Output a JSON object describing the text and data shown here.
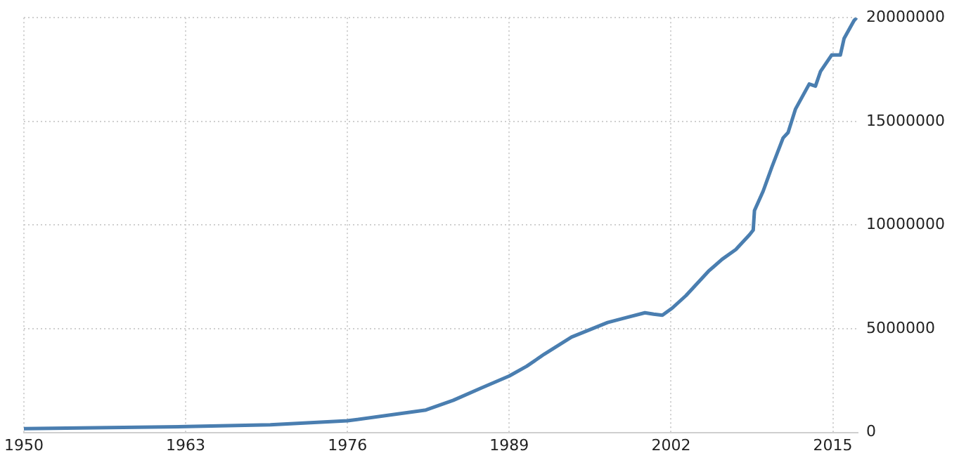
{
  "chart_data": {
    "type": "line",
    "x": [
      1950,
      1963,
      1969.8,
      1976,
      1982.3,
      1984.5,
      1986.7,
      1989,
      1990.4,
      1991.8,
      1994,
      1996.9,
      1998.4,
      1999.9,
      2000.6,
      2001.3,
      2002.1,
      2003.2,
      2005,
      2006.1,
      2007.2,
      2008.3,
      2008.6,
      2008.7,
      2009.4,
      2010.1,
      2011,
      2011.4,
      2012,
      2013.1,
      2013.6,
      2014,
      2014.9,
      2015.6,
      2015.9,
      2016.7,
      2016.9
    ],
    "series": [
      {
        "color": "#4a7eb0",
        "values": [
          180000,
          280000,
          370000,
          560000,
          1080000,
          1550000,
          2130000,
          2720000,
          3190000,
          3770000,
          4600000,
          5300000,
          5540000,
          5770000,
          5700000,
          5650000,
          6000000,
          6600000,
          7770000,
          8350000,
          8820000,
          9530000,
          9760000,
          10700000,
          11640000,
          12800000,
          14200000,
          14460000,
          15600000,
          16800000,
          16700000,
          17400000,
          18200000,
          18200000,
          19000000,
          19860000,
          20000000
        ]
      }
    ],
    "xlim": [
      1950,
      2017
    ],
    "xticks": [
      1950,
      1963,
      1976,
      1989,
      2002,
      2015
    ],
    "ylim": [
      0,
      20000000
    ],
    "yticks": [
      0,
      5000000,
      10000000,
      15000000,
      20000000
    ],
    "grid": true,
    "legend": false,
    "marker": "none",
    "line_style": "solid"
  }
}
